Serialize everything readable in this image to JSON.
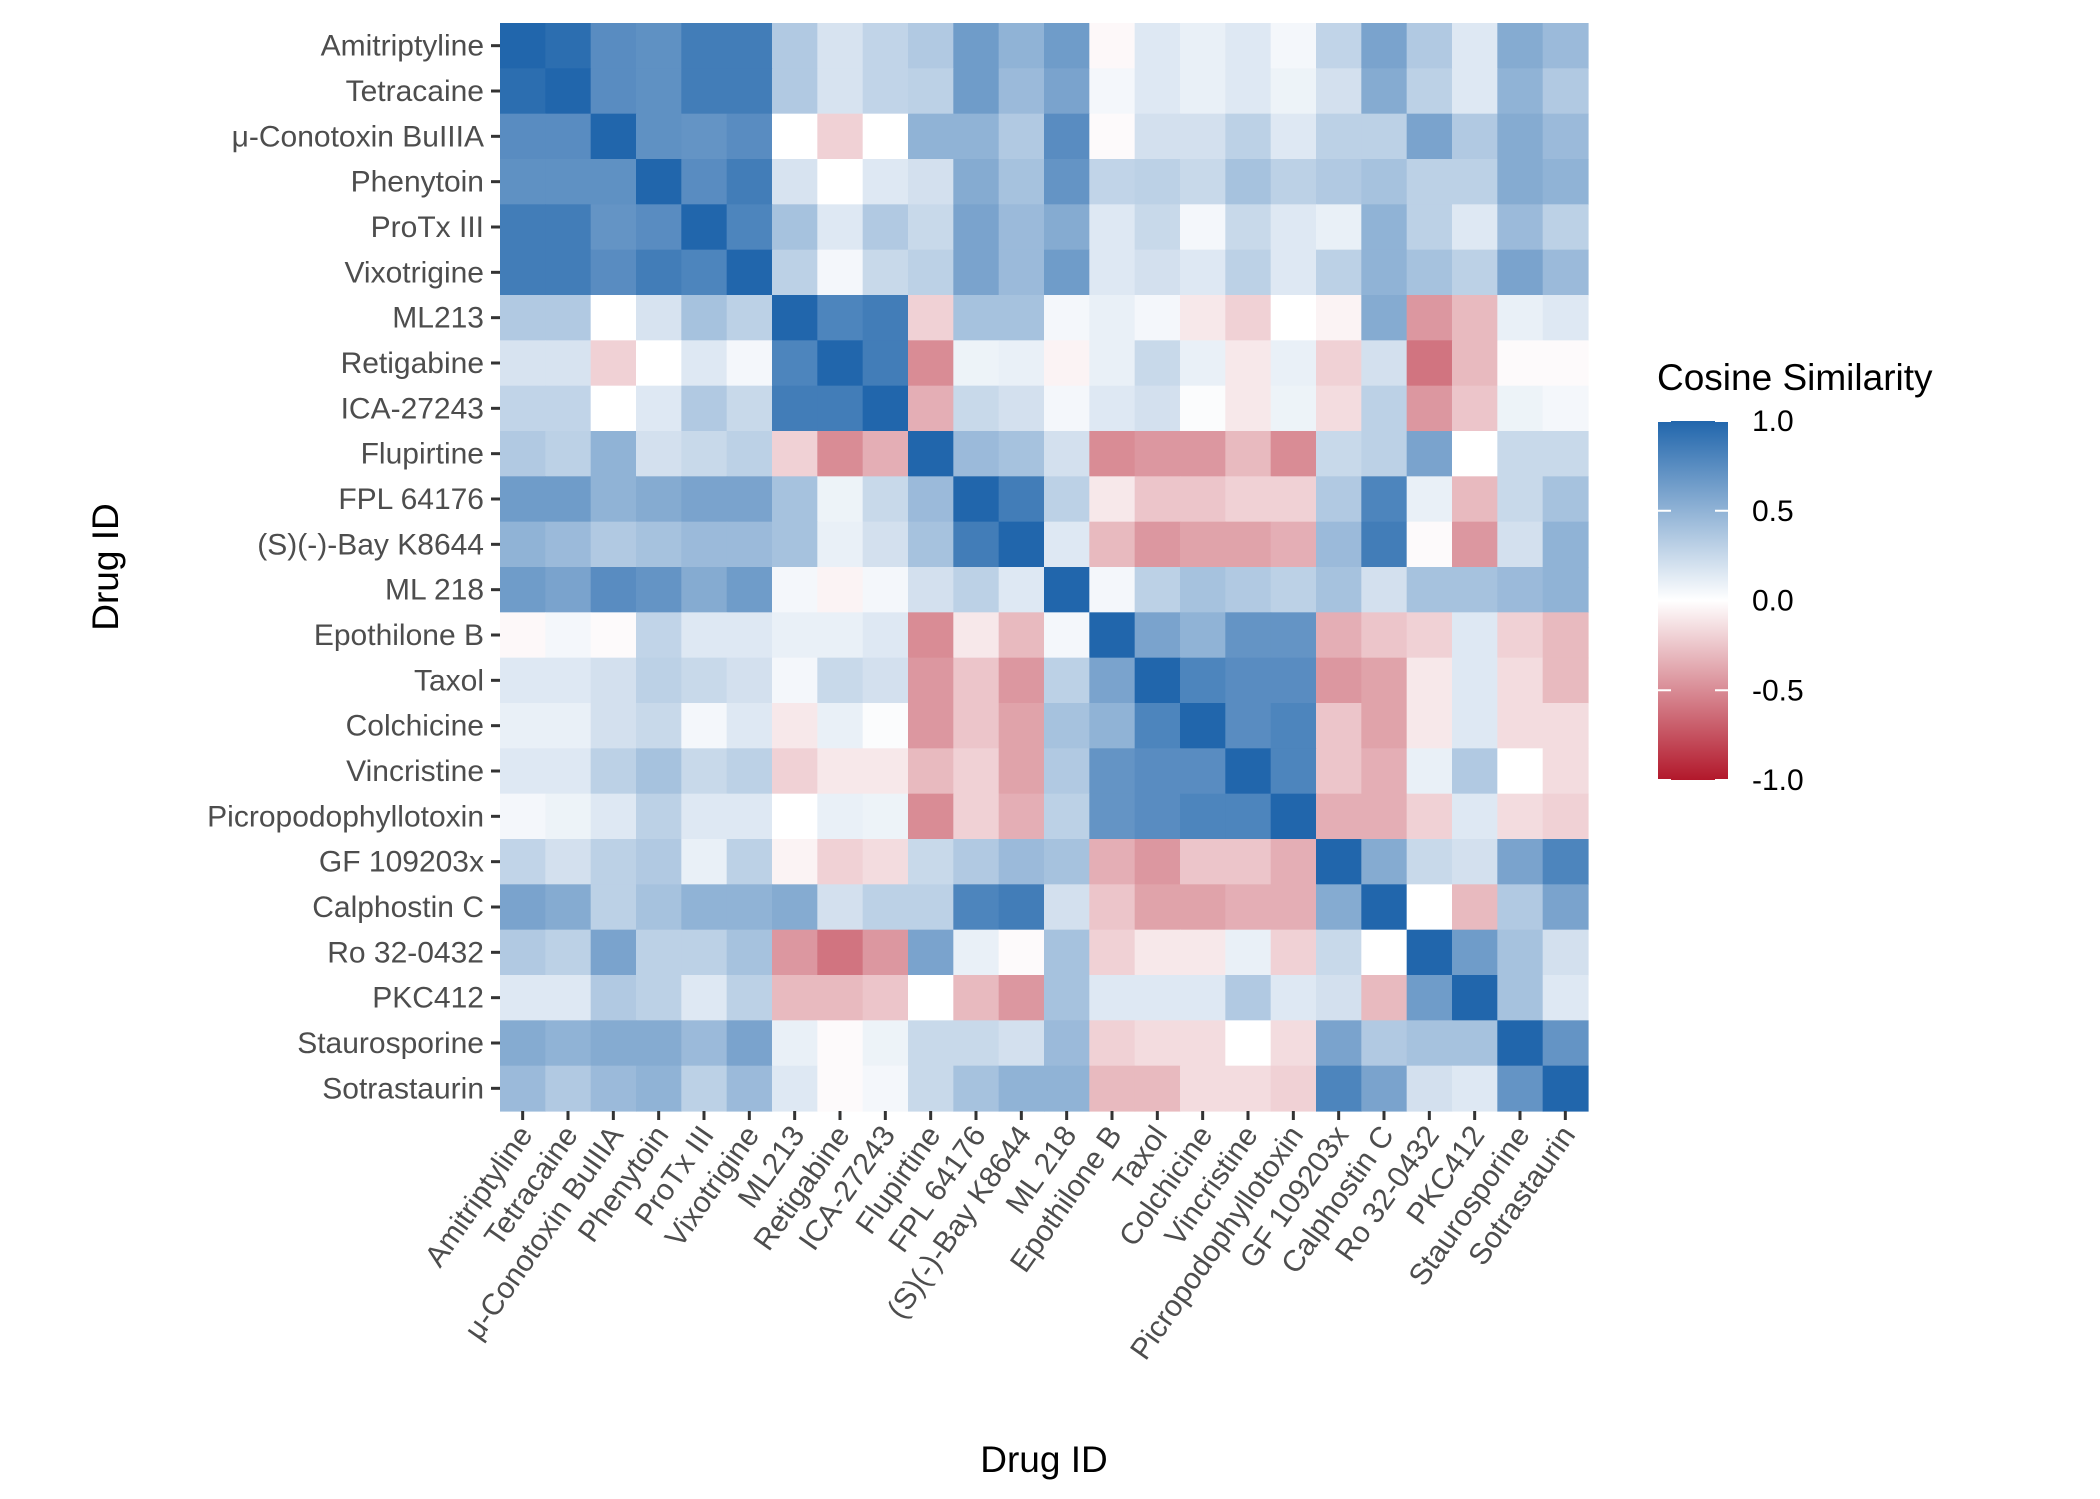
{
  "chart_data": {
    "type": "heatmap",
    "title": "",
    "xlabel": "Drug ID",
    "ylabel": "Drug ID",
    "legend": {
      "title": "Cosine Similarity",
      "position": "right",
      "range": [
        -1.0,
        1.0
      ],
      "ticks": [
        "1.0",
        "0.5",
        "0.0",
        "-0.5",
        "-1.0"
      ],
      "tick_values": [
        1.0,
        0.5,
        0.0,
        -0.5,
        -1.0
      ],
      "colors": {
        "low": "#b2182b",
        "mid": "#ffffff",
        "high": "#2166ac"
      }
    },
    "grid": true,
    "labels": [
      "Amitriptyline",
      "Tetracaine",
      "μ-Conotoxin BuIIIA",
      "Phenytoin",
      "ProTx III",
      "Vixotrigine",
      "ML213",
      "Retigabine",
      "ICA-27243",
      "Flupirtine",
      "FPL 64176",
      "(S)(-)-Bay K8644",
      "ML 218",
      "Epothilone B",
      "Taxol",
      "Colchicine",
      "Vincristine",
      "Picropodophyllotoxin",
      "GF 109203x",
      "Calphostin C",
      "Ro 32-0432",
      "PKC412",
      "Staurosporine",
      "Sotrastaurin"
    ],
    "values": [
      [
        1.0,
        0.95,
        0.75,
        0.72,
        0.85,
        0.85,
        0.35,
        0.18,
        0.28,
        0.35,
        0.65,
        0.5,
        0.65,
        -0.03,
        0.15,
        0.1,
        0.15,
        0.05,
        0.28,
        0.6,
        0.35,
        0.15,
        0.55,
        0.45
      ],
      [
        0.95,
        1.0,
        0.75,
        0.72,
        0.85,
        0.85,
        0.35,
        0.18,
        0.28,
        0.3,
        0.65,
        0.45,
        0.6,
        0.05,
        0.15,
        0.1,
        0.15,
        0.08,
        0.2,
        0.55,
        0.3,
        0.15,
        0.5,
        0.35
      ],
      [
        0.75,
        0.75,
        1.0,
        0.72,
        0.7,
        0.75,
        0.0,
        -0.2,
        0.0,
        0.5,
        0.5,
        0.35,
        0.75,
        -0.02,
        0.2,
        0.2,
        0.3,
        0.15,
        0.3,
        0.3,
        0.6,
        0.35,
        0.55,
        0.45
      ],
      [
        0.72,
        0.72,
        0.72,
        1.0,
        0.75,
        0.85,
        0.18,
        0.0,
        0.15,
        0.2,
        0.55,
        0.4,
        0.7,
        0.28,
        0.3,
        0.25,
        0.4,
        0.3,
        0.35,
        0.4,
        0.3,
        0.3,
        0.55,
        0.5
      ],
      [
        0.85,
        0.85,
        0.7,
        0.75,
        1.0,
        0.8,
        0.4,
        0.15,
        0.35,
        0.25,
        0.6,
        0.45,
        0.55,
        0.15,
        0.25,
        0.05,
        0.25,
        0.15,
        0.1,
        0.5,
        0.3,
        0.15,
        0.45,
        0.3
      ],
      [
        0.85,
        0.85,
        0.75,
        0.85,
        0.8,
        1.0,
        0.3,
        0.05,
        0.25,
        0.3,
        0.6,
        0.45,
        0.65,
        0.15,
        0.2,
        0.15,
        0.3,
        0.15,
        0.3,
        0.5,
        0.4,
        0.3,
        0.6,
        0.45
      ],
      [
        0.35,
        0.35,
        0.0,
        0.18,
        0.4,
        0.3,
        1.0,
        0.8,
        0.85,
        -0.2,
        0.4,
        0.4,
        0.05,
        0.1,
        0.05,
        -0.1,
        -0.2,
        0.0,
        -0.05,
        0.55,
        -0.45,
        -0.3,
        0.1,
        0.15
      ],
      [
        0.18,
        0.18,
        -0.2,
        0.0,
        0.15,
        0.05,
        0.8,
        1.0,
        0.85,
        -0.5,
        0.08,
        0.1,
        -0.05,
        0.1,
        0.25,
        0.1,
        -0.1,
        0.1,
        -0.2,
        0.2,
        -0.6,
        -0.3,
        -0.02,
        -0.02
      ],
      [
        0.28,
        0.28,
        0.0,
        0.15,
        0.35,
        0.25,
        0.85,
        0.85,
        1.0,
        -0.35,
        0.25,
        0.2,
        0.05,
        0.15,
        0.2,
        0.02,
        -0.1,
        0.08,
        -0.15,
        0.3,
        -0.45,
        -0.25,
        0.08,
        0.05
      ],
      [
        0.35,
        0.3,
        0.5,
        0.2,
        0.25,
        0.3,
        -0.2,
        -0.5,
        -0.35,
        1.0,
        0.45,
        0.4,
        0.2,
        -0.5,
        -0.45,
        -0.45,
        -0.3,
        -0.5,
        0.25,
        0.3,
        0.6,
        0.0,
        0.25,
        0.25
      ],
      [
        0.65,
        0.65,
        0.5,
        0.55,
        0.6,
        0.6,
        0.4,
        0.08,
        0.25,
        0.45,
        1.0,
        0.85,
        0.3,
        -0.1,
        -0.25,
        -0.25,
        -0.2,
        -0.2,
        0.35,
        0.8,
        0.1,
        -0.3,
        0.25,
        0.4
      ],
      [
        0.5,
        0.45,
        0.35,
        0.4,
        0.45,
        0.45,
        0.4,
        0.1,
        0.2,
        0.4,
        0.85,
        1.0,
        0.15,
        -0.3,
        -0.45,
        -0.4,
        -0.4,
        -0.35,
        0.45,
        0.85,
        -0.02,
        -0.45,
        0.2,
        0.5
      ],
      [
        0.65,
        0.6,
        0.75,
        0.7,
        0.55,
        0.65,
        0.05,
        -0.05,
        0.05,
        0.2,
        0.3,
        0.15,
        1.0,
        0.05,
        0.3,
        0.4,
        0.35,
        0.3,
        0.4,
        0.2,
        0.4,
        0.4,
        0.45,
        0.5
      ],
      [
        -0.03,
        0.05,
        -0.02,
        0.28,
        0.15,
        0.15,
        0.1,
        0.1,
        0.15,
        -0.5,
        -0.1,
        -0.3,
        0.05,
        1.0,
        0.6,
        0.5,
        0.7,
        0.7,
        -0.35,
        -0.25,
        -0.2,
        0.15,
        -0.2,
        -0.3
      ],
      [
        0.15,
        0.15,
        0.2,
        0.3,
        0.25,
        0.2,
        0.05,
        0.25,
        0.2,
        -0.45,
        -0.25,
        -0.45,
        0.3,
        0.6,
        1.0,
        0.8,
        0.75,
        0.75,
        -0.45,
        -0.4,
        -0.1,
        0.15,
        -0.15,
        -0.3
      ],
      [
        0.1,
        0.1,
        0.2,
        0.25,
        0.05,
        0.15,
        -0.1,
        0.1,
        0.02,
        -0.45,
        -0.25,
        -0.4,
        0.4,
        0.5,
        0.8,
        1.0,
        0.75,
        0.8,
        -0.25,
        -0.4,
        -0.1,
        0.15,
        -0.15,
        -0.15
      ],
      [
        0.15,
        0.15,
        0.3,
        0.4,
        0.25,
        0.3,
        -0.2,
        -0.1,
        -0.1,
        -0.3,
        -0.2,
        -0.4,
        0.35,
        0.7,
        0.75,
        0.75,
        1.0,
        0.8,
        -0.25,
        -0.35,
        0.1,
        0.35,
        0.0,
        -0.15
      ],
      [
        0.05,
        0.08,
        0.15,
        0.3,
        0.15,
        0.15,
        0.0,
        0.1,
        0.08,
        -0.5,
        -0.2,
        -0.35,
        0.3,
        0.7,
        0.75,
        0.8,
        0.8,
        1.0,
        -0.35,
        -0.35,
        -0.2,
        0.15,
        -0.15,
        -0.2
      ],
      [
        0.28,
        0.2,
        0.3,
        0.35,
        0.1,
        0.3,
        -0.05,
        -0.2,
        -0.15,
        0.25,
        0.35,
        0.45,
        0.4,
        -0.35,
        -0.45,
        -0.25,
        -0.25,
        -0.35,
        1.0,
        0.55,
        0.25,
        0.2,
        0.6,
        0.8
      ],
      [
        0.6,
        0.55,
        0.3,
        0.4,
        0.5,
        0.5,
        0.55,
        0.2,
        0.3,
        0.3,
        0.8,
        0.85,
        0.2,
        -0.25,
        -0.4,
        -0.4,
        -0.35,
        -0.35,
        0.55,
        1.0,
        0.0,
        -0.3,
        0.35,
        0.6
      ],
      [
        0.35,
        0.3,
        0.6,
        0.3,
        0.3,
        0.4,
        -0.45,
        -0.6,
        -0.45,
        0.6,
        0.1,
        -0.02,
        0.4,
        -0.2,
        -0.1,
        -0.1,
        0.1,
        -0.2,
        0.25,
        0.0,
        1.0,
        0.65,
        0.4,
        0.2
      ],
      [
        0.15,
        0.15,
        0.35,
        0.3,
        0.15,
        0.3,
        -0.3,
        -0.3,
        -0.25,
        0.0,
        -0.3,
        -0.45,
        0.4,
        0.15,
        0.15,
        0.15,
        0.35,
        0.15,
        0.2,
        -0.3,
        0.65,
        1.0,
        0.4,
        0.15
      ],
      [
        0.55,
        0.5,
        0.55,
        0.55,
        0.45,
        0.6,
        0.1,
        -0.02,
        0.08,
        0.25,
        0.25,
        0.2,
        0.45,
        -0.2,
        -0.15,
        -0.15,
        0.0,
        -0.15,
        0.6,
        0.35,
        0.4,
        0.4,
        1.0,
        0.7
      ],
      [
        0.45,
        0.35,
        0.45,
        0.5,
        0.3,
        0.45,
        0.15,
        -0.02,
        0.05,
        0.25,
        0.4,
        0.5,
        0.5,
        -0.3,
        -0.3,
        -0.15,
        -0.15,
        -0.2,
        0.8,
        0.6,
        0.2,
        0.15,
        0.7,
        1.0
      ]
    ]
  }
}
